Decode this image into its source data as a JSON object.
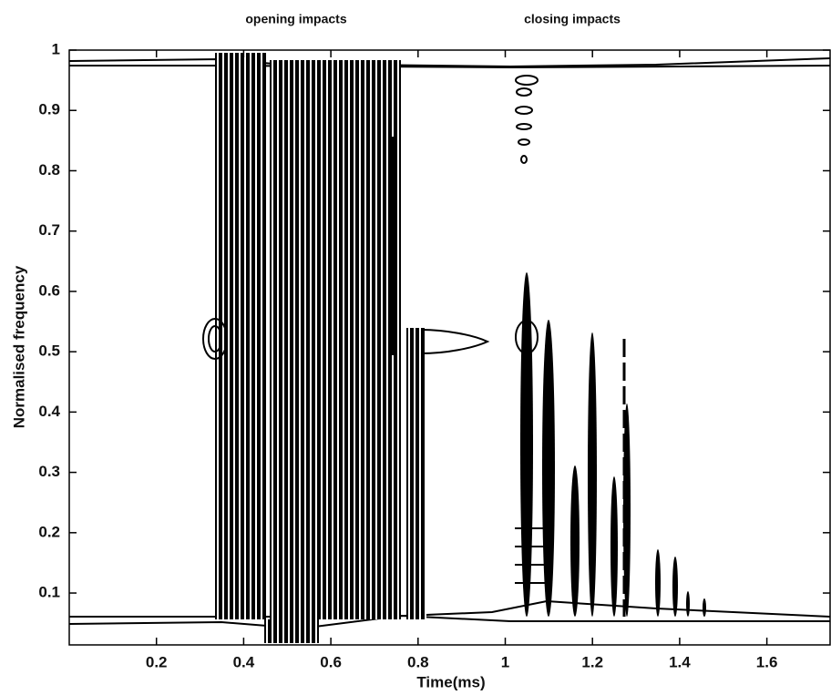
{
  "chart_data": {
    "type": "contour",
    "annotations": [
      "opening impacts",
      "closing impacts"
    ],
    "xlabel": "Time(ms)",
    "ylabel": "Normalised frequency",
    "xlim": [
      0,
      1.745
    ],
    "ylim": [
      0.014,
      1
    ],
    "xticks": [
      0.2,
      0.4,
      0.6,
      0.8,
      1,
      1.2,
      1.4,
      1.6
    ],
    "yticks": [
      0.1,
      0.2,
      0.3,
      0.4,
      0.5,
      0.6,
      0.7,
      0.8,
      0.9,
      1
    ],
    "color": "#000000"
  }
}
